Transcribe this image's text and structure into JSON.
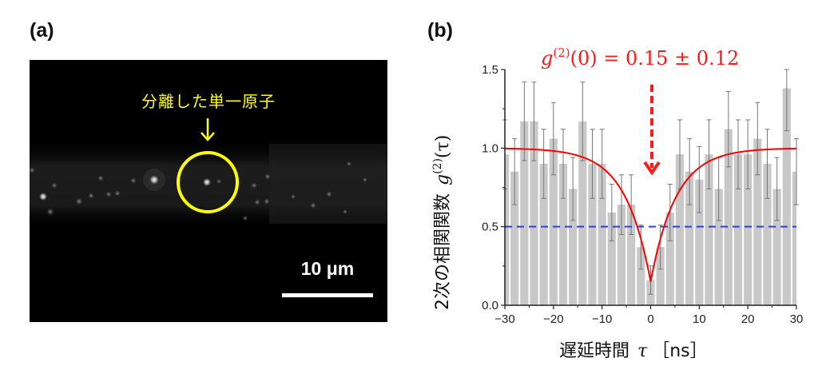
{
  "panels": {
    "a": {
      "label": "(a)"
    },
    "b": {
      "label": "(b)"
    }
  },
  "micrograph": {
    "annotation": "分離した単一原子",
    "annotation_color": "#ffff00",
    "scale_bar_label": "10 μm"
  },
  "chart_data": {
    "type": "bar",
    "title": "",
    "annotation": "g(2)(0) = 0.15 ± 0.12",
    "annotation_parts": {
      "g": "g",
      "sup": "(2)",
      "arg": "(0) = 0.15 ± 0.12"
    },
    "xlabel": "遅延時間 τ ［ns］",
    "xlabel_parts": {
      "jp": "遅延時間",
      "sym": "τ",
      "unit": "［ns］"
    },
    "ylabel": "2次の相関関数 g(2)(τ)",
    "ylabel_parts": {
      "jp": "2次の相関関数",
      "g": "g",
      "sup": "(2)",
      "arg": "(τ)"
    },
    "xlim": [
      -30,
      30
    ],
    "ylim": [
      0,
      1.5
    ],
    "xticks": [
      -30,
      -20,
      -10,
      0,
      10,
      20,
      30
    ],
    "xtick_labels": [
      "−30",
      "−20",
      "−10",
      "0",
      "10",
      "20",
      "30"
    ],
    "yticks": [
      0.0,
      0.5,
      1.0,
      1.5
    ],
    "ytick_labels": [
      "0.0",
      "0.5",
      "1.0",
      "1.5"
    ],
    "bin_width": 2,
    "x": [
      -30,
      -28,
      -26,
      -24,
      -22,
      -20,
      -18,
      -16,
      -14,
      -12,
      -10,
      -8,
      -6,
      -4,
      -2,
      0,
      2,
      4,
      6,
      8,
      10,
      12,
      14,
      16,
      18,
      20,
      22,
      24,
      26,
      28,
      30
    ],
    "values": [
      0.96,
      0.85,
      1.17,
      1.17,
      0.9,
      1.06,
      0.9,
      0.74,
      1.17,
      0.9,
      0.9,
      0.59,
      0.64,
      0.64,
      0.37,
      0.16,
      0.37,
      0.59,
      0.96,
      0.85,
      0.8,
      0.96,
      0.74,
      1.12,
      0.96,
      0.96,
      1.06,
      0.9,
      0.74,
      1.38,
      0.85
    ],
    "errors": [
      0.22,
      0.21,
      0.25,
      0.25,
      0.22,
      0.23,
      0.22,
      0.2,
      0.25,
      0.22,
      0.22,
      0.18,
      0.19,
      0.19,
      0.14,
      0.09,
      0.14,
      0.18,
      0.22,
      0.21,
      0.21,
      0.22,
      0.2,
      0.24,
      0.22,
      0.22,
      0.23,
      0.22,
      0.2,
      0.27,
      0.21
    ],
    "fit": {
      "name": "fit",
      "model": "1 - (1 - g0) * exp(-|τ| / τ0)",
      "g0": 0.15,
      "tau0": 5.2,
      "color": "#ff0000"
    },
    "reference_line": {
      "y": 0.5,
      "color": "#2a3cff",
      "style": "dashed"
    },
    "bar_color": "#c8c8c8",
    "error_color": "#777777",
    "arrow_color": "#ff1a1a",
    "grid": false,
    "legend": "none"
  }
}
